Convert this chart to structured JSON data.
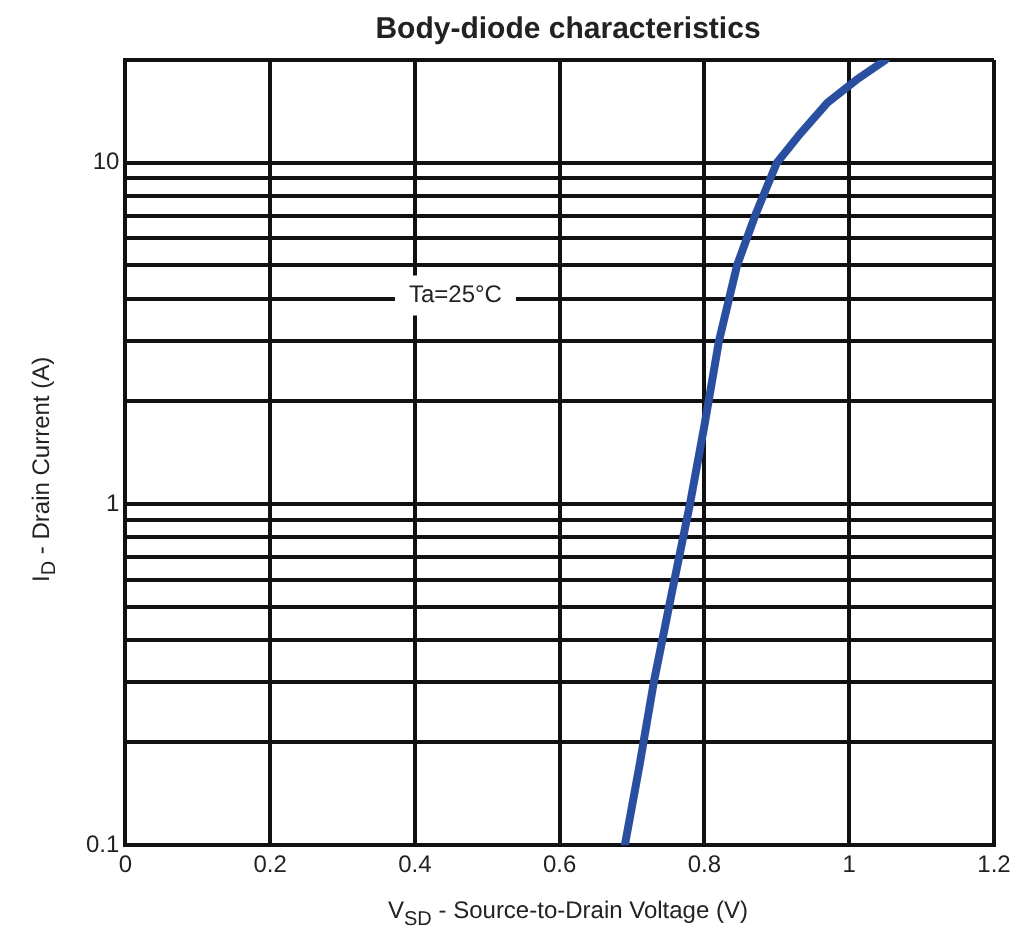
{
  "chart_data": {
    "type": "line",
    "title": "Body-diode characteristics",
    "xlabel": "V$_{SD}$ - Source-to-Drain Voltage (V)",
    "ylabel": "I$_{D}$ - Drain Current (A)",
    "annotations": [
      "Ta=25°C"
    ],
    "x": [
      0.69,
      0.71,
      0.73,
      0.755,
      0.78,
      0.8,
      0.82,
      0.845,
      0.87,
      0.9,
      0.93,
      0.97,
      1.01,
      1.05
    ],
    "series": [
      {
        "color": "#2a4ea0",
        "values": [
          0.1,
          0.17,
          0.3,
          0.55,
          1,
          1.7,
          3,
          5,
          7,
          10,
          12,
          15,
          17.5,
          20
        ]
      }
    ],
    "log": "y",
    "grid": true,
    "legend": false,
    "marker": "none",
    "line_style": "solid",
    "xlim": [
      0,
      1.2
    ],
    "xticks": [
      0,
      0.2,
      0.4,
      0.6,
      0.8,
      1,
      1.2
    ],
    "ylim": [
      0.1,
      20
    ],
    "yticks": [
      0.1,
      {
        "value": 0.2,
        "label": null
      },
      {
        "value": 0.3,
        "label": null
      },
      {
        "value": 0.4,
        "label": null
      },
      {
        "value": 0.5,
        "label": null
      },
      {
        "value": 0.6,
        "label": null
      },
      {
        "value": 0.7,
        "label": null
      },
      {
        "value": 0.8,
        "label": null
      },
      {
        "value": 0.9,
        "label": null
      },
      1,
      {
        "value": 2,
        "label": null
      },
      {
        "value": 3,
        "label": null
      },
      {
        "value": 4,
        "label": null
      },
      {
        "value": 5,
        "label": null
      },
      {
        "value": 6,
        "label": null
      },
      {
        "value": 7,
        "label": null
      },
      {
        "value": 8,
        "label": null
      },
      {
        "value": 9,
        "label": null
      },
      10,
      {
        "value": 20,
        "label": null
      }
    ]
  }
}
